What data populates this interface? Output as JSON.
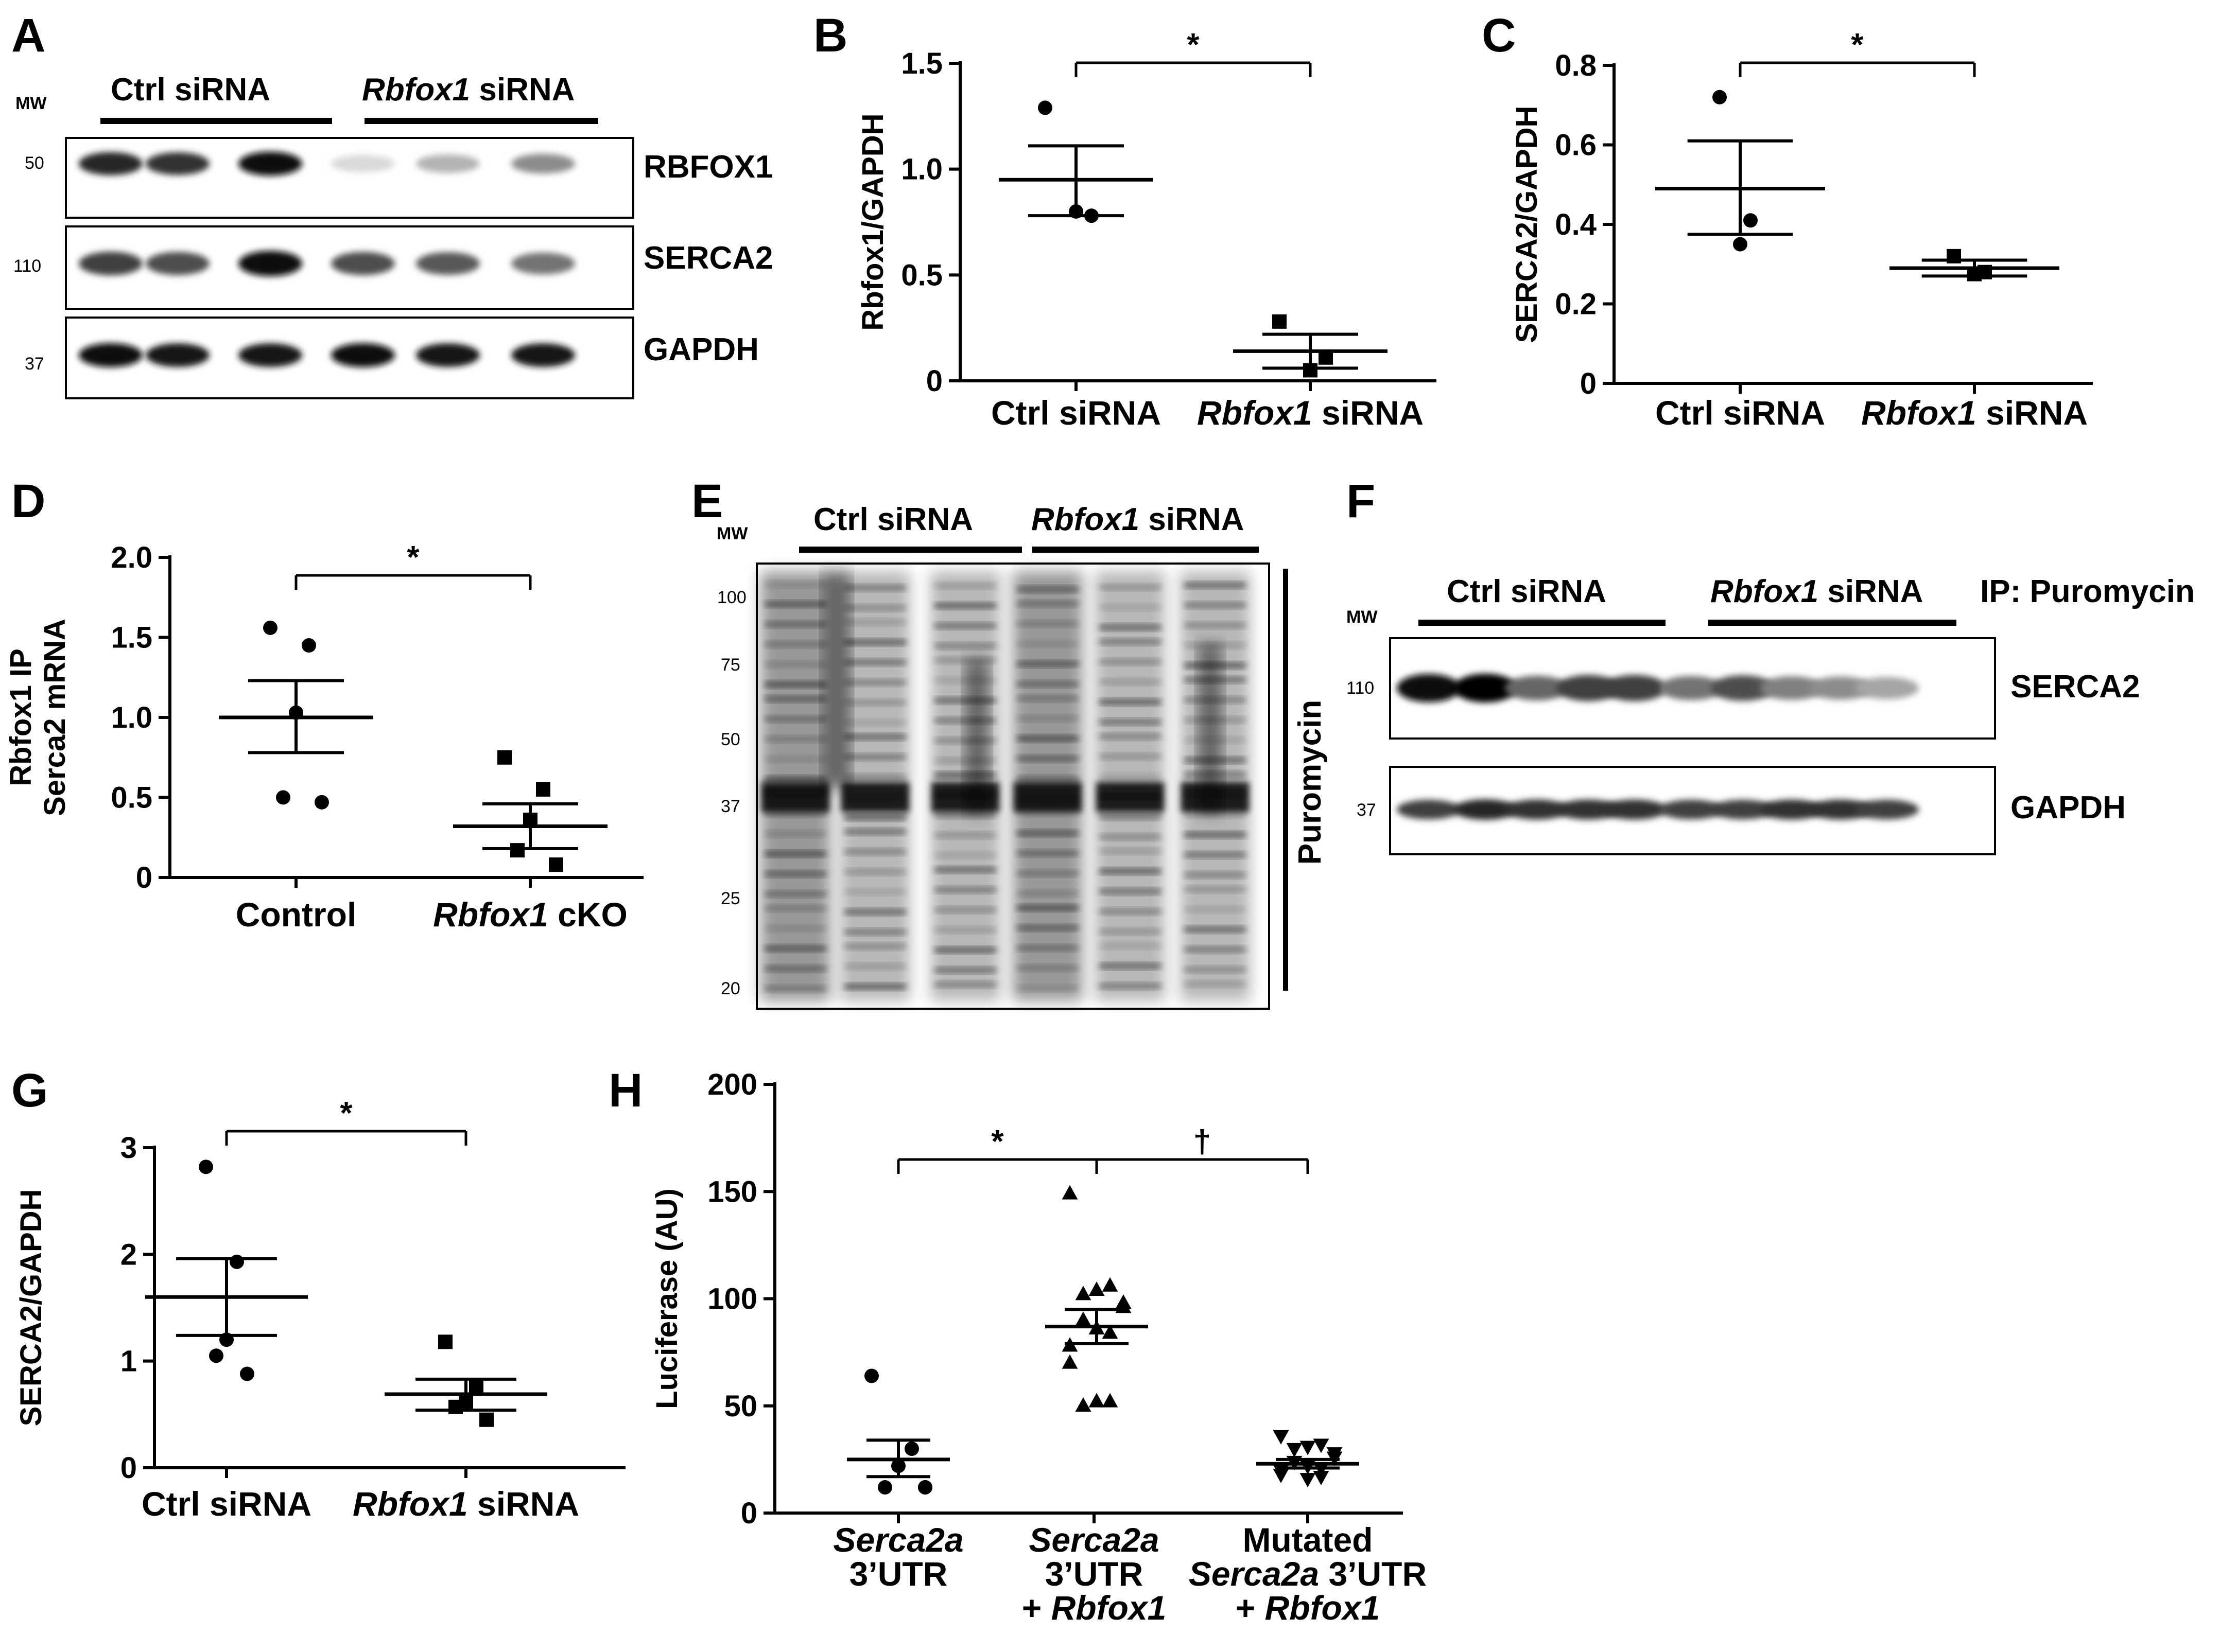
{
  "panels": {
    "A": "A",
    "B": "B",
    "C": "C",
    "D": "D",
    "E": "E",
    "F": "F",
    "G": "G",
    "H": "H"
  },
  "blot_A": {
    "mw_label": "MW",
    "mw_markers": [
      "50",
      "110",
      "37"
    ],
    "groups": [
      {
        "name": "Ctrl siRNA"
      },
      {
        "name_italic": "Rbfox1",
        "name_rest": " siRNA"
      }
    ],
    "bands": [
      "RBFOX1",
      "SERCA2",
      "GAPDH"
    ],
    "band_intensity": {
      "RBFOX1": [
        0.85,
        0.8,
        0.95,
        0.15,
        0.3,
        0.45
      ],
      "SERCA2": [
        0.75,
        0.7,
        0.95,
        0.7,
        0.65,
        0.55
      ],
      "GAPDH": [
        0.95,
        0.9,
        0.9,
        0.95,
        0.9,
        0.9
      ]
    }
  },
  "blot_E": {
    "mw_label": "MW",
    "mw_markers": [
      "100",
      "75",
      "50",
      "37",
      "25",
      "20"
    ],
    "groups": [
      {
        "name": "Ctrl siRNA"
      },
      {
        "name_italic": "Rbfox1",
        "name_rest": " siRNA"
      }
    ],
    "side_label": "Puromycin"
  },
  "blot_F": {
    "mw_label": "MW",
    "mw_markers": [
      "110",
      "37"
    ],
    "groups": [
      {
        "name": "Ctrl siRNA"
      },
      {
        "name_italic": "Rbfox1",
        "name_rest": " siRNA"
      }
    ],
    "ip_label": "IP: Puromycin",
    "bands": [
      "SERCA2",
      "GAPDH"
    ],
    "band_intensity": {
      "SERCA2": [
        0.95,
        1.0,
        0.6,
        0.75,
        0.75,
        0.55,
        0.7,
        0.5,
        0.45,
        0.35
      ],
      "GAPDH": [
        0.75,
        0.85,
        0.8,
        0.8,
        0.8,
        0.75,
        0.75,
        0.8,
        0.8,
        0.75
      ]
    }
  },
  "chart_data": [
    {
      "panel": "B",
      "type": "scatter",
      "ylabel": "Rbfox1/GAPDH",
      "ylim": [
        0,
        1.5
      ],
      "yticks": [
        "0",
        "0.5",
        "1.0",
        "1.5"
      ],
      "categories": [
        {
          "plain": "Ctrl siRNA",
          "italic": ""
        },
        {
          "plain": " siRNA",
          "italic": "Rbfox1"
        }
      ],
      "series": [
        {
          "marker": "circle",
          "points": [
            1.29,
            0.78,
            0.8
          ],
          "mean": 0.95,
          "sem_hi": 1.11,
          "sem_lo": 0.78
        },
        {
          "marker": "square",
          "points": [
            0.28,
            0.11,
            0.05
          ],
          "mean": 0.14,
          "sem_hi": 0.22,
          "sem_lo": 0.06
        }
      ],
      "significance": [
        {
          "from": 0,
          "to": 1,
          "label": "*"
        }
      ]
    },
    {
      "panel": "C",
      "type": "scatter",
      "ylabel": "SERCA2/GAPDH",
      "ylim": [
        0,
        0.8
      ],
      "yticks": [
        "0",
        "0.2",
        "0.4",
        "0.6",
        "0.8"
      ],
      "categories": [
        {
          "plain": "Ctrl siRNA",
          "italic": ""
        },
        {
          "plain": " siRNA",
          "italic": "Rbfox1"
        }
      ],
      "series": [
        {
          "marker": "circle",
          "points": [
            0.72,
            0.41,
            0.35
          ],
          "mean": 0.49,
          "sem_hi": 0.61,
          "sem_lo": 0.375
        },
        {
          "marker": "square",
          "points": [
            0.32,
            0.28,
            0.275
          ],
          "mean": 0.29,
          "sem_hi": 0.31,
          "sem_lo": 0.27
        }
      ],
      "significance": [
        {
          "from": 0,
          "to": 1,
          "label": "*"
        }
      ]
    },
    {
      "panel": "D",
      "type": "scatter",
      "ylabel_lines": [
        "Rbfox1 IP",
        "Serca2 mRNA"
      ],
      "ylim": [
        0,
        2.0
      ],
      "yticks": [
        "0",
        "0.5",
        "1.0",
        "1.5",
        "2.0"
      ],
      "categories": [
        {
          "plain": "Control",
          "italic": ""
        },
        {
          "plain": " cKO",
          "italic": "Rbfox1"
        }
      ],
      "series": [
        {
          "marker": "circle",
          "points": [
            1.56,
            1.45,
            1.03,
            0.5,
            0.47
          ],
          "mean": 1.0,
          "sem_hi": 1.23,
          "sem_lo": 0.78
        },
        {
          "marker": "square",
          "points": [
            0.75,
            0.55,
            0.36,
            0.17,
            0.08
          ],
          "mean": 0.32,
          "sem_hi": 0.46,
          "sem_lo": 0.18
        }
      ],
      "significance": [
        {
          "from": 0,
          "to": 1,
          "label": "*"
        }
      ]
    },
    {
      "panel": "G",
      "type": "scatter",
      "ylabel": "SERCA2/GAPDH",
      "ylim": [
        0,
        3
      ],
      "yticks": [
        "0",
        "1",
        "2",
        "3"
      ],
      "categories": [
        {
          "plain": "Ctrl siRNA",
          "italic": ""
        },
        {
          "plain": " siRNA",
          "italic": "Rbfox1"
        }
      ],
      "series": [
        {
          "marker": "circle",
          "points": [
            2.82,
            1.93,
            1.2,
            1.05,
            0.88
          ],
          "mean": 1.6,
          "sem_hi": 1.96,
          "sem_lo": 1.24
        },
        {
          "marker": "square",
          "points": [
            1.18,
            0.75,
            0.62,
            0.57,
            0.45
          ],
          "mean": 0.69,
          "sem_hi": 0.83,
          "sem_lo": 0.54
        }
      ],
      "significance": [
        {
          "from": 0,
          "to": 1,
          "label": "*"
        }
      ]
    },
    {
      "panel": "H",
      "type": "scatter",
      "ylabel": "Luciferase (AU)",
      "ylim": [
        0,
        200
      ],
      "yticks": [
        "0",
        "50",
        "100",
        "150",
        "200"
      ],
      "categories": [
        {
          "lines": [
            {
              "italic": "Serca2a",
              "plain": ""
            },
            {
              "italic": "",
              "plain": "3’UTR"
            }
          ]
        },
        {
          "lines": [
            {
              "italic": "Serca2a",
              "plain": ""
            },
            {
              "italic": "",
              "plain": "3’UTR"
            },
            {
              "italic": "Rbfox1",
              "plain": "+ ",
              "prefix": true
            }
          ]
        },
        {
          "lines": [
            {
              "italic": "",
              "plain": "Mutated"
            },
            {
              "italic": "Serca2a",
              "plain": " 3’UTR"
            },
            {
              "italic": "Rbfox1",
              "plain": "+ ",
              "prefix": true
            }
          ]
        }
      ],
      "series": [
        {
          "marker": "circle",
          "points": [
            64,
            30,
            22,
            12,
            12,
            12
          ],
          "mean": 25,
          "sem_hi": 34,
          "sem_lo": 17
        },
        {
          "marker": "triangle-up",
          "points": [
            149,
            106,
            104,
            102,
            98,
            96,
            90,
            86,
            84,
            78,
            70,
            52,
            52,
            50
          ],
          "mean": 87,
          "sem_hi": 95,
          "sem_lo": 79
        },
        {
          "marker": "triangle-down",
          "points": [
            36,
            32,
            31,
            30,
            28,
            26,
            24,
            22,
            21,
            20,
            18,
            17,
            16
          ],
          "mean": 23,
          "sem_hi": 25,
          "sem_lo": 21
        }
      ],
      "significance": [
        {
          "from": 0,
          "to": 1,
          "label": "*"
        },
        {
          "from": 1,
          "to": 2,
          "label": "†"
        }
      ]
    }
  ]
}
